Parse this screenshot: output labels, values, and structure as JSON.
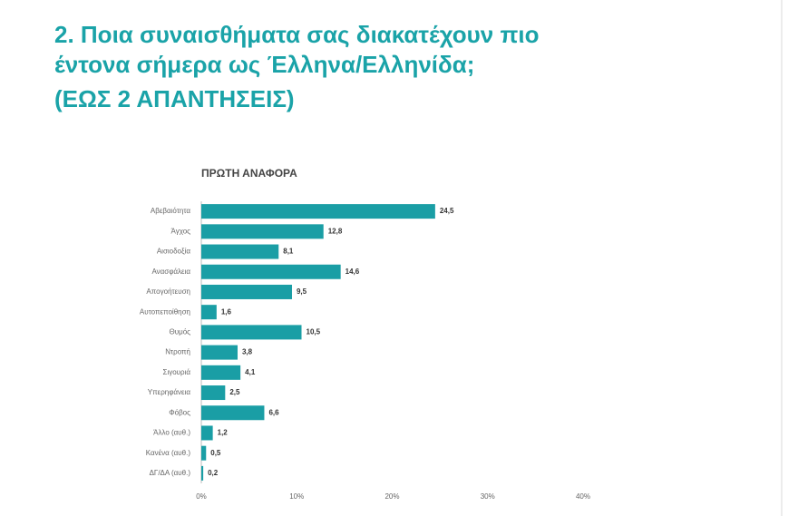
{
  "chart_data": {
    "type": "barh",
    "title": [
      "2. Ποια συναισθήματα σας διακατέχουν πιο",
      "έντονα σήμερα ως Έλληνα/Ελληνίδα;"
    ],
    "subtitle": "(ΕΩΣ 2 ΑΠΑΝΤΗΣΕΙΣ)",
    "chart_title": "ΠΡΩΤΗ ΑΝΑΦΟΡΑ",
    "categories": [
      "Αβεβαιότητα",
      "Άγχος",
      "Αισιοδοξία",
      "Ανασφάλεια",
      "Απογοήτευση",
      "Αυτοπεποίθηση",
      "Θυμός",
      "Ντροπή",
      "Σιγουριά",
      "Υπερηφάνεια",
      "Φόβος",
      "Άλλο (αυθ.)",
      "Κανένα (αυθ.)",
      "ΔΓ/ΔΑ (αυθ.)"
    ],
    "values": [
      24.5,
      12.8,
      8.1,
      14.6,
      9.5,
      1.6,
      10.5,
      3.8,
      4.1,
      2.5,
      6.6,
      1.2,
      0.5,
      0.2
    ],
    "value_labels": [
      "24,5",
      "12,8",
      "8,1",
      "14,6",
      "9,5",
      "1,6",
      "10,5",
      "3,8",
      "4,1",
      "2,5",
      "6,6",
      "1,2",
      "0,5",
      "0,2"
    ],
    "color": "#1a9ea5",
    "xlim": [
      0,
      40
    ],
    "xticks": [
      {
        "value": 0,
        "label": "0%"
      },
      {
        "value": 10,
        "label": "10%"
      },
      {
        "value": 20,
        "label": "20%"
      },
      {
        "value": 30,
        "label": "30%"
      },
      {
        "value": 40,
        "label": "40%"
      }
    ]
  }
}
